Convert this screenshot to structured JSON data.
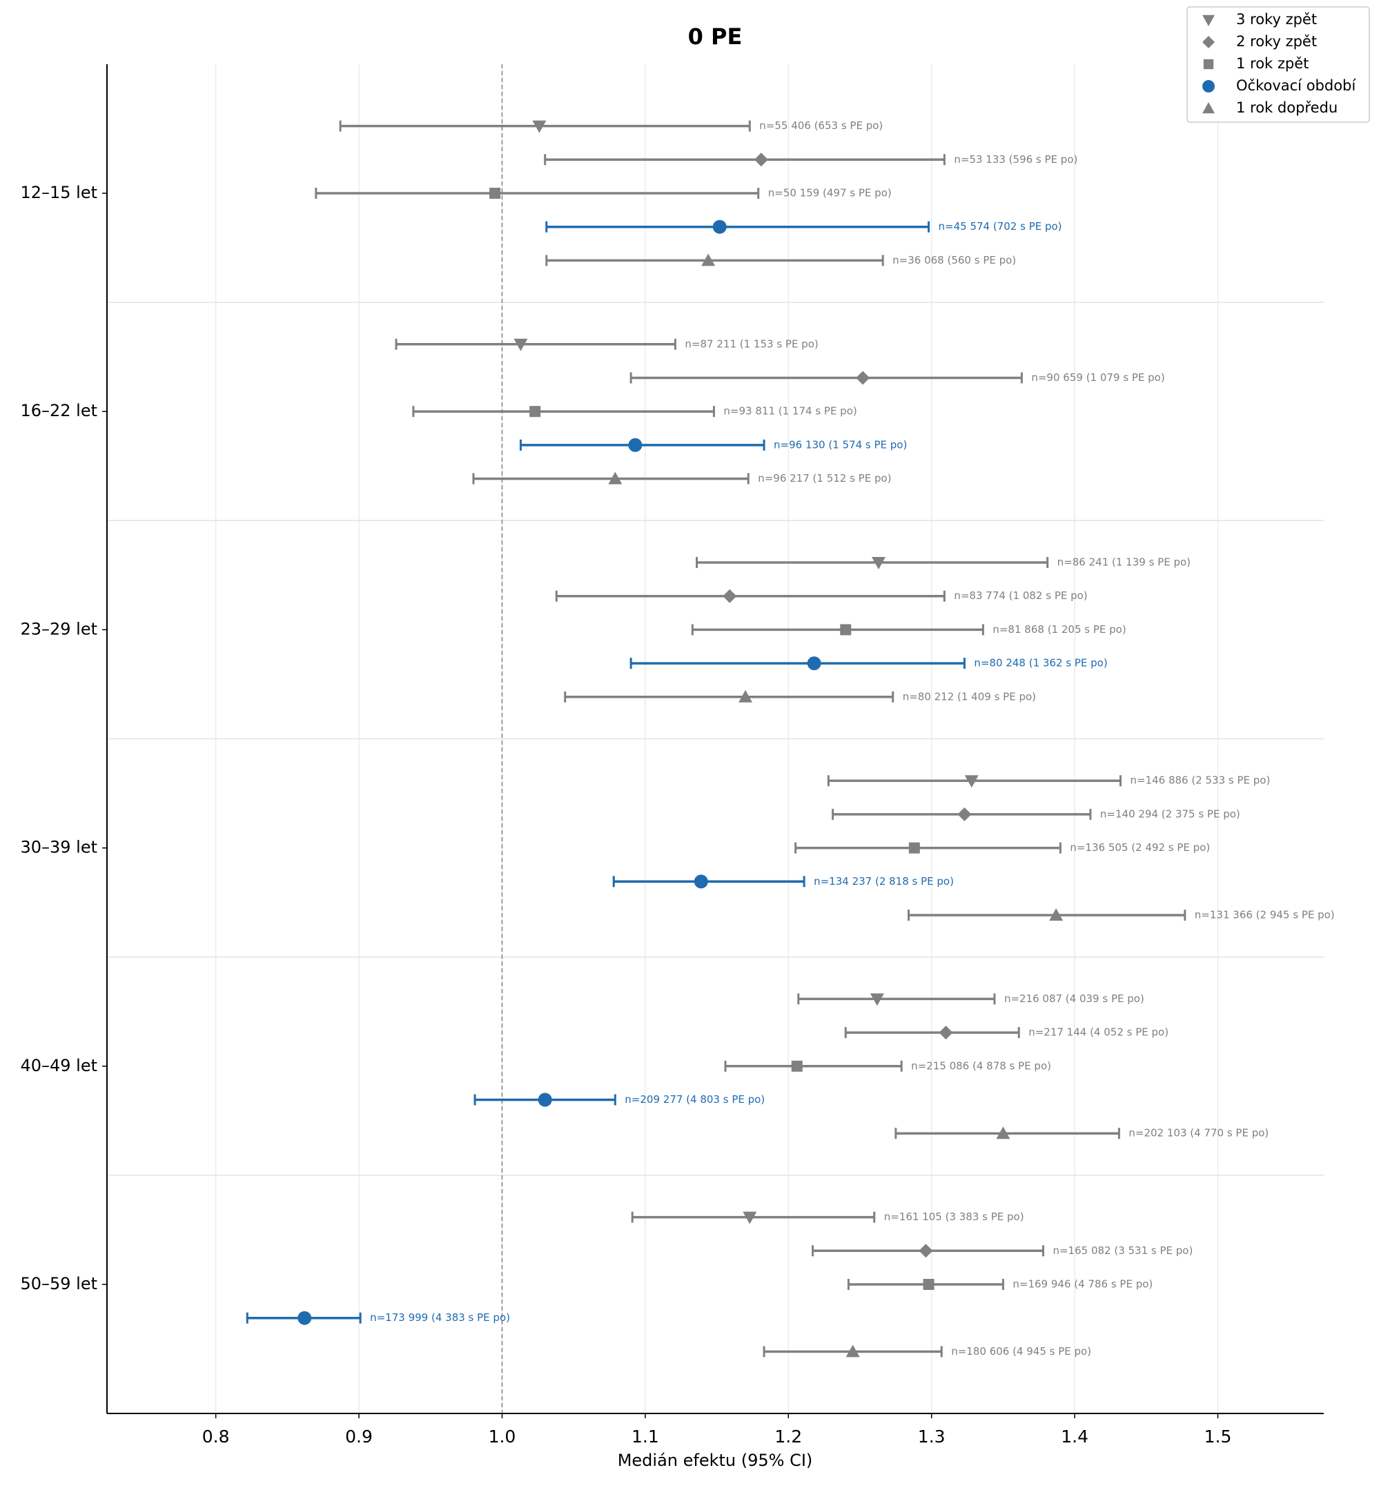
{
  "chart_data": {
    "type": "forest",
    "title": "0 PE",
    "x_label": "Medián efektu (95% CI)",
    "categories": [
      "12–15 let",
      "16–22 let",
      "23–29 let",
      "30–39 let",
      "40–49 let",
      "50–59 let"
    ],
    "xlim": [
      0.724,
      1.574
    ],
    "xticks": [
      0.8,
      0.9,
      {
        "value": 1,
        "label": "1.0"
      },
      1.1,
      1.2,
      1.3,
      1.4,
      1.5
    ],
    "grid": true,
    "reference_line": 1,
    "legend": "upper right",
    "series": [
      {
        "name": "3 roky zpět",
        "color": "#808080",
        "marker": "triangle-down",
        "values": [
          1.026,
          1.013,
          1.263,
          1.328,
          1.262,
          1.173
        ],
        "lower": [
          0.887,
          0.926,
          1.136,
          1.228,
          1.207,
          1.091
        ],
        "upper": [
          1.173,
          1.121,
          1.381,
          1.432,
          1.344,
          1.26
        ],
        "labels": [
          "n=55 406 (653 s PE po)",
          "n=87 211 (1 153 s PE po)",
          "n=86 241 (1 139 s PE po)",
          "n=146 886 (2 533 s PE po)",
          "n=216 087 (4 039 s PE po)",
          "n=161 105 (3 383 s PE po)"
        ]
      },
      {
        "name": "2 roky zpět",
        "color": "#808080",
        "marker": "diamond",
        "values": [
          1.181,
          1.252,
          1.159,
          1.323,
          1.31,
          1.296
        ],
        "lower": [
          1.03,
          1.09,
          1.038,
          1.231,
          1.24,
          1.217
        ],
        "upper": [
          1.309,
          1.363,
          1.309,
          1.411,
          1.361,
          1.378
        ],
        "labels": [
          "n=53 133 (596 s PE po)",
          "n=90 659 (1 079 s PE po)",
          "n=83 774 (1 082 s PE po)",
          "n=140 294 (2 375 s PE po)",
          "n=217 144 (4 052 s PE po)",
          "n=165 082 (3 531 s PE po)"
        ]
      },
      {
        "name": "1 rok zpět",
        "color": "#808080",
        "marker": "square",
        "values": [
          0.995,
          1.023,
          1.24,
          1.288,
          1.206,
          1.298
        ],
        "lower": [
          0.87,
          0.938,
          1.133,
          1.205,
          1.156,
          1.242
        ],
        "upper": [
          1.179,
          1.148,
          1.336,
          1.39,
          1.279,
          1.35
        ],
        "labels": [
          "n=50 159 (497 s PE po)",
          "n=93 811 (1 174 s PE po)",
          "n=81 868 (1 205 s PE po)",
          "n=136 505 (2 492 s PE po)",
          "n=215 086 (4 878 s PE po)",
          "n=169 946 (4 786 s PE po)"
        ]
      },
      {
        "name": "Očkovací období",
        "color": "#1f6bb0",
        "marker": "circle",
        "values": [
          1.152,
          1.093,
          1.218,
          1.139,
          1.03,
          0.862
        ],
        "lower": [
          1.031,
          1.013,
          1.09,
          1.078,
          0.981,
          0.822
        ],
        "upper": [
          1.298,
          1.183,
          1.323,
          1.211,
          1.079,
          0.901
        ],
        "labels": [
          "n=45 574 (702 s PE po)",
          "n=96 130 (1 574 s PE po)",
          "n=80 248 (1 362 s PE po)",
          "n=134 237 (2 818 s PE po)",
          "n=209 277 (4 803 s PE po)",
          "n=173 999 (4 383 s PE po)"
        ]
      },
      {
        "name": "1 rok dopředu",
        "color": "#808080",
        "marker": "triangle-up",
        "values": [
          1.144,
          1.079,
          1.17,
          1.387,
          1.35,
          1.245
        ],
        "lower": [
          1.031,
          0.98,
          1.044,
          1.284,
          1.275,
          1.183
        ],
        "upper": [
          1.266,
          1.172,
          1.273,
          1.477,
          1.431,
          1.307
        ],
        "labels": [
          "n=36 068 (560 s PE po)",
          "n=96 217 (1 512 s PE po)",
          "n=80 212 (1 409 s PE po)",
          "n=131 366 (2 945 s PE po)",
          "n=202 103 (4 770 s PE po)",
          "n=180 606 (4 945 s PE po)"
        ]
      }
    ]
  }
}
